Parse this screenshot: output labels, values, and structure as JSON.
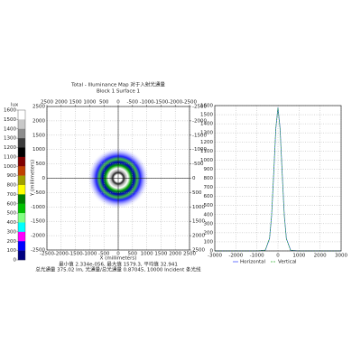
{
  "chart_data": [
    {
      "type": "heatmap",
      "title": "Total - Illuminance Map 对于入射光通量",
      "subtitle": "Block 1 Surface 1",
      "xlabel": "X (millimeters)",
      "ylabel": "Y (millimeters)",
      "xlim": [
        -2500,
        2500
      ],
      "xticks": [
        -2500,
        -2000,
        -1500,
        -1000,
        -500,
        0,
        500,
        1000,
        1500,
        2000,
        2500
      ],
      "x2lim": [
        2500,
        -2500
      ],
      "x2ticks": [
        2500,
        2000,
        1500,
        1000,
        500,
        0,
        -500,
        -1000,
        -1500,
        -2000,
        -2500
      ],
      "ylim": [
        -2500,
        2500
      ],
      "yticks": [
        2500,
        2000,
        1500,
        1000,
        500,
        0,
        -500,
        -1000,
        -1500,
        -2000,
        -2500
      ],
      "y2lim": [
        2500,
        -2500
      ],
      "y2ticks": [
        -2500,
        -2000,
        -1500,
        -1000,
        -500,
        0,
        500,
        1000,
        1500,
        2000,
        2500
      ],
      "colorbar": {
        "label": "lux",
        "lim": [
          0,
          1600
        ],
        "ticks": [
          1600,
          1500,
          1400,
          1300,
          1200,
          1100,
          1000,
          900,
          800,
          700,
          600,
          500,
          400,
          300,
          200,
          100,
          0
        ],
        "colors": [
          "#ffffff",
          "#c8c8c8",
          "#8c8c8c",
          "#3c3c3c",
          "#000000",
          "#800000",
          "#c04000",
          "#a0a000",
          "#ffff00",
          "#008000",
          "#00c000",
          "#80ff80",
          "#00ffff",
          "#ff00ff",
          "#0000ff",
          "#000080"
        ]
      },
      "notes": [
        "最小值 2.334e-056, 最大值 1579.3, 平均值 32.941",
        "总光通量 375.02 lm, 光通量/总光通量 0.87045, 10000 Incident 条光线"
      ]
    },
    {
      "type": "line",
      "xlim": [
        -3000,
        3000
      ],
      "xticks": [
        -3000,
        -2000,
        -1000,
        0,
        1000,
        2000,
        3000
      ],
      "ylim": [
        0,
        1600
      ],
      "yticks": [
        0,
        100,
        200,
        300,
        400,
        500,
        600,
        700,
        800,
        900,
        1000,
        1100,
        1200,
        1300,
        1400,
        1500,
        1600
      ],
      "x": [
        -3000,
        -1000,
        -600,
        -400,
        -300,
        -200,
        -100,
        0,
        100,
        200,
        300,
        400,
        600,
        1000,
        3000
      ],
      "series": [
        {
          "name": "Horizontal",
          "color": "#3040ff",
          "values": [
            0,
            0,
            7,
            136,
            394,
            860,
            1350,
            1580,
            1350,
            860,
            394,
            136,
            7,
            0,
            0
          ]
        },
        {
          "name": "Vertical",
          "color": "#30b030",
          "values": [
            0,
            0,
            9,
            140,
            400,
            870,
            1360,
            1575,
            1340,
            850,
            385,
            130,
            6,
            0,
            0
          ]
        }
      ]
    }
  ]
}
